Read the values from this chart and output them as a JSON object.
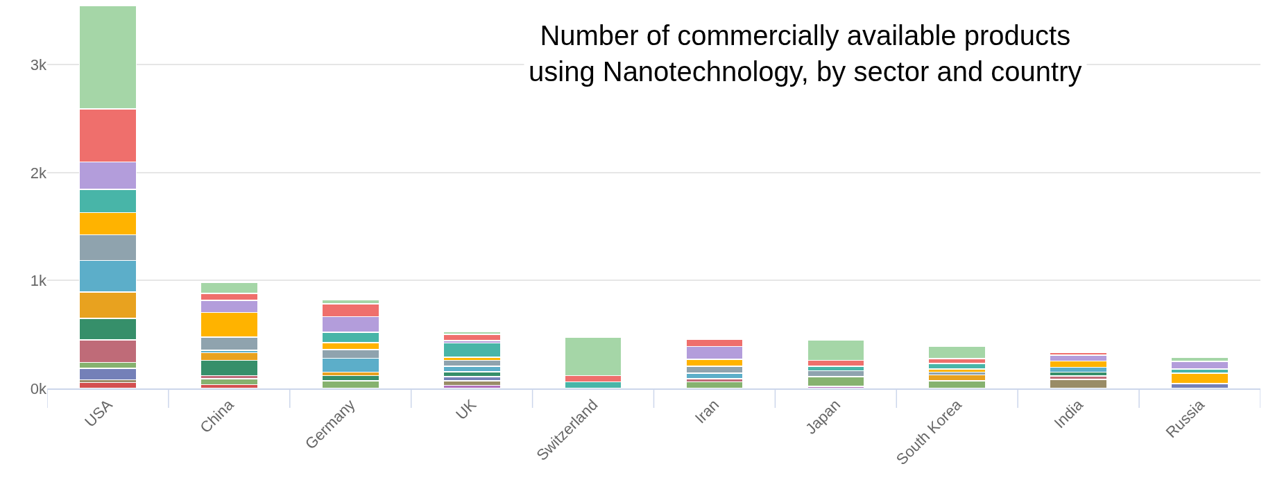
{
  "chart_data": {
    "type": "bar",
    "stacked": true,
    "title": "Number of commercially available products using Nanotechnology, by sector and country",
    "categories": [
      "USA",
      "China",
      "Germany",
      "UK",
      "Switzerland",
      "Iran",
      "Japan",
      "South Korea",
      "India",
      "Russia"
    ],
    "series": [
      {
        "color": "#b06fbe",
        "values": [
          null,
          null,
          null,
          30,
          null,
          null,
          20,
          null,
          null,
          null
        ]
      },
      {
        "color": "#d44f4f",
        "values": [
          55,
          35,
          null,
          null,
          null,
          null,
          null,
          null,
          null,
          null
        ]
      },
      {
        "color": "#998c67",
        "values": [
          25,
          null,
          null,
          40,
          null,
          null,
          null,
          null,
          85,
          null
        ]
      },
      {
        "color": "#7480b8",
        "values": [
          105,
          null,
          null,
          40,
          null,
          null,
          null,
          null,
          null,
          45
        ]
      },
      {
        "color": "#86b26f",
        "values": [
          55,
          55,
          70,
          null,
          null,
          60,
          90,
          70,
          null,
          null
        ]
      },
      {
        "color": "#bf6b78",
        "values": [
          210,
          30,
          null,
          null,
          null,
          30,
          null,
          null,
          30,
          null
        ]
      },
      {
        "color": "#368f6a",
        "values": [
          200,
          140,
          50,
          45,
          null,
          null,
          null,
          null,
          35,
          null
        ]
      },
      {
        "color": "#e8a21f",
        "values": [
          245,
          70,
          30,
          null,
          null,
          null,
          null,
          55,
          null,
          null
        ]
      },
      {
        "color": "#5caec9",
        "values": [
          290,
          25,
          130,
          50,
          null,
          50,
          null,
          null,
          45,
          null
        ]
      },
      {
        "color": "#8fa3ae",
        "values": [
          240,
          120,
          80,
          55,
          null,
          65,
          55,
          25,
          null,
          null
        ]
      },
      {
        "color": "#ffb300",
        "values": [
          205,
          230,
          65,
          30,
          null,
          65,
          null,
          30,
          60,
          95
        ]
      },
      {
        "color": "#48b5a8",
        "values": [
          215,
          null,
          95,
          130,
          60,
          null,
          40,
          50,
          null,
          40
        ]
      },
      {
        "color": "#b39ddb",
        "values": [
          255,
          110,
          145,
          25,
          null,
          120,
          null,
          null,
          55,
          70
        ]
      },
      {
        "color": "#ef6f6c",
        "values": [
          490,
          65,
          120,
          55,
          60,
          65,
          55,
          45,
          25,
          null
        ]
      },
      {
        "color": "#a5d6a7",
        "values": [
          960,
          105,
          35,
          25,
          355,
          null,
          190,
          115,
          null,
          40
        ]
      }
    ],
    "ylim": [
      0,
      3600
    ],
    "yticks": [
      {
        "value": 0,
        "label": "0k"
      },
      {
        "value": 1000,
        "label": "1k"
      },
      {
        "value": 2000,
        "label": "2k"
      },
      {
        "value": 3000,
        "label": "3k"
      }
    ],
    "grid": "y"
  }
}
